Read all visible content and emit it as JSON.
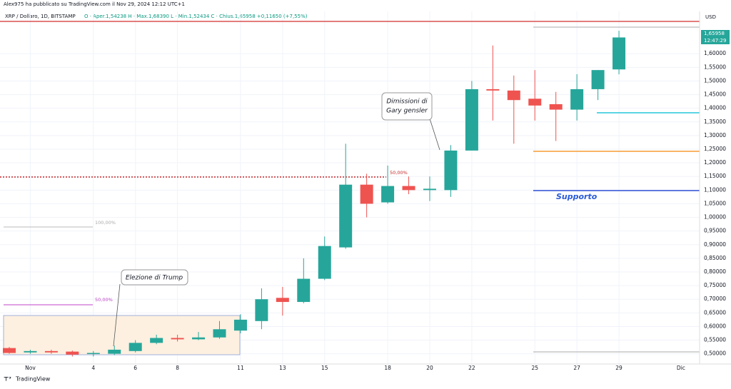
{
  "header": "Alex975 ha pubblicato su TradingView.com il Nov 29, 2024 12:12 UTC+1",
  "footer": "TradingView",
  "chart_data": {
    "type": "candlestick",
    "title": "XRP / Dollaro, 1D, BITSTAMP",
    "ohlc_text": "O · Aper.1,54238 H · Max.1,68390 L · Min.1,52434 C · Chius.1,65958 +0,11650 (+7,55%)",
    "currency": "USD",
    "last_price_label": "1,65958",
    "countdown": "12:47:29",
    "categories": [
      null,
      "Nov",
      null,
      null,
      "4",
      null,
      "6",
      null,
      "8",
      null,
      null,
      "11",
      null,
      "13",
      null,
      "15",
      null,
      null,
      "18",
      null,
      "20",
      null,
      "22",
      null,
      null,
      "25",
      null,
      "27",
      null,
      "29"
    ],
    "x_axis_extra": "Dic",
    "open": [
      0.521,
      0.505,
      0.51,
      0.508,
      0.5,
      0.5,
      0.51,
      0.54,
      0.558,
      0.553,
      0.56,
      0.585,
      0.62,
      0.705,
      0.69,
      0.775,
      0.89,
      1.12,
      1.055,
      1.115,
      1.1,
      1.1,
      1.245,
      1.47,
      1.465,
      1.435,
      1.415,
      1.395,
      1.47,
      1.54238
    ],
    "high": [
      0.525,
      0.515,
      0.515,
      0.512,
      0.51,
      0.53,
      0.55,
      0.57,
      0.57,
      0.58,
      0.62,
      0.645,
      0.74,
      0.745,
      0.85,
      0.93,
      1.27,
      1.16,
      1.19,
      1.15,
      1.15,
      1.265,
      1.5,
      1.63,
      1.52,
      1.54,
      1.46,
      1.525,
      1.54,
      1.6839
    ],
    "low": [
      0.5,
      0.5,
      0.5,
      0.49,
      0.49,
      0.495,
      0.505,
      0.535,
      0.545,
      0.55,
      0.555,
      0.575,
      0.59,
      0.64,
      0.685,
      0.77,
      0.885,
      1.0,
      1.05,
      1.085,
      1.06,
      1.075,
      1.245,
      1.355,
      1.27,
      1.355,
      1.28,
      1.355,
      1.43,
      1.52434
    ],
    "close": [
      0.503,
      0.51,
      0.505,
      0.497,
      0.503,
      0.515,
      0.54,
      0.558,
      0.553,
      0.56,
      0.59,
      0.625,
      0.7,
      0.69,
      0.775,
      0.895,
      1.12,
      1.05,
      1.115,
      1.1,
      1.105,
      1.245,
      1.47,
      1.465,
      1.43,
      1.41,
      1.395,
      1.47,
      1.54,
      1.65958
    ],
    "up_color": "#26a69a",
    "down_color": "#ef5350",
    "ylim": [
      0.4625,
      1.755
    ],
    "yticks": [
      {
        "value": 0.5,
        "label": "0,50000"
      },
      {
        "value": 0.55,
        "label": "0,55000"
      },
      {
        "value": 0.6,
        "label": "0,60000"
      },
      {
        "value": 0.65,
        "label": "0,65000"
      },
      {
        "value": 0.7,
        "label": "0,70000"
      },
      {
        "value": 0.75,
        "label": "0,75000"
      },
      {
        "value": 0.8,
        "label": "0,80000"
      },
      {
        "value": 0.85,
        "label": "0,85000"
      },
      {
        "value": 0.9,
        "label": "0,90000"
      },
      {
        "value": 0.95,
        "label": "0,95000"
      },
      {
        "value": 1.0,
        "label": "1,00000"
      },
      {
        "value": 1.05,
        "label": "1,05000"
      },
      {
        "value": 1.1,
        "label": "1,10000"
      },
      {
        "value": 1.15,
        "label": "1,15000"
      },
      {
        "value": 1.2,
        "label": "1,20000"
      },
      {
        "value": 1.25,
        "label": "1,25000"
      },
      {
        "value": 1.3,
        "label": "1,30000"
      },
      {
        "value": 1.35,
        "label": "1,35000"
      },
      {
        "value": 1.4,
        "label": "1,40000"
      },
      {
        "value": 1.45,
        "label": "1,45000"
      },
      {
        "value": 1.5,
        "label": "1,50000"
      },
      {
        "value": 1.55,
        "label": "1,55000"
      },
      {
        "value": 1.6,
        "label": "1,60000"
      }
    ],
    "grid": true,
    "annotations": {
      "trump": "Elezione di Trump",
      "gensler_1": "Dimissioni di",
      "gensler_2": "Gary gensler",
      "support": "Supporto",
      "fib50_a": "50,00%",
      "fib50_b": "50,00%",
      "fib100": "100,00%"
    }
  }
}
